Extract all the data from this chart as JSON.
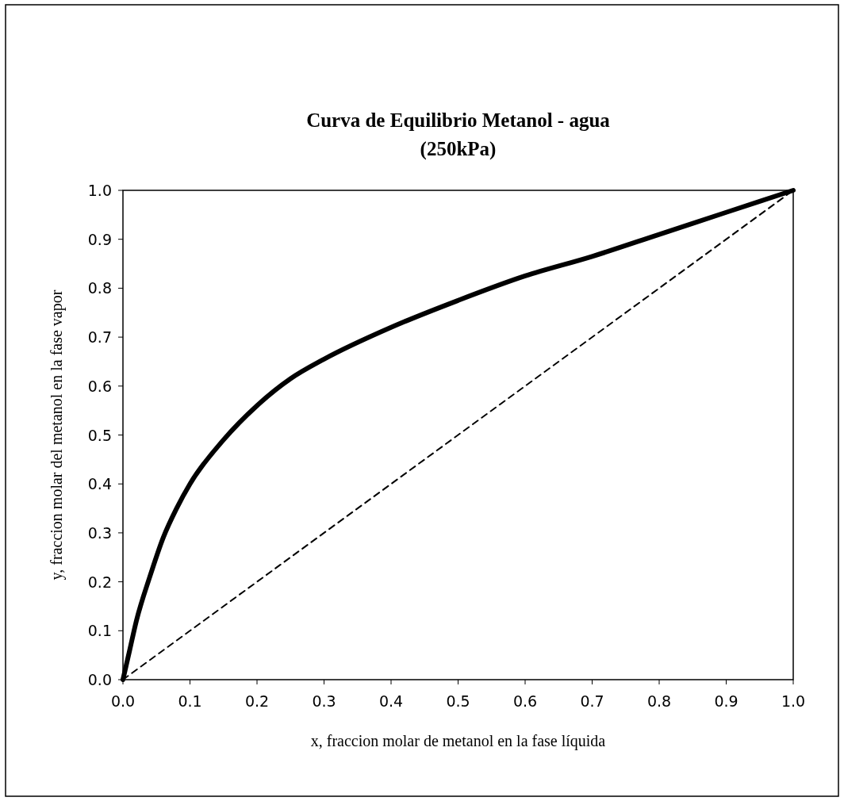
{
  "chart_data": {
    "type": "line",
    "title": "Curva de Equilibrio Metanol - agua",
    "subtitle": "(250kPa)",
    "xlabel": "x, fraccion molar de metanol en la fase líquida",
    "ylabel": "y, fraccion molar  del metanol en la fase  vapor",
    "series": [
      {
        "color": "#000000",
        "line_style": "solid",
        "x": [
          0,
          0.01,
          0.02,
          0.04,
          0.06,
          0.08,
          0.1,
          0.15,
          0.2,
          0.25,
          0.3,
          0.4,
          0.5,
          0.6,
          0.7,
          0.8,
          0.9,
          1.0
        ],
        "values": [
          0,
          0.06,
          0.12,
          0.21,
          0.29,
          0.35,
          0.4,
          0.49,
          0.56,
          0.615,
          0.655,
          0.72,
          0.775,
          0.825,
          0.865,
          0.91,
          0.955,
          1.0
        ]
      },
      {
        "color": "#000000",
        "line_style": "dashed",
        "x": [
          0,
          1
        ],
        "values": [
          0,
          1
        ]
      }
    ],
    "xlim": [
      0,
      1
    ],
    "ylim": [
      0,
      1
    ],
    "xticks": [
      {
        "value": 0,
        "label": "0.0"
      },
      0.1,
      0.2,
      0.3,
      0.4,
      0.5,
      0.6,
      0.7,
      0.8,
      0.9,
      {
        "value": 1,
        "label": "1.0"
      }
    ],
    "yticks": [
      {
        "value": 0,
        "label": "0.0"
      },
      0.1,
      0.2,
      0.3,
      0.4,
      0.5,
      0.6,
      0.7,
      0.8,
      0.9,
      {
        "value": 1,
        "label": "1.0"
      }
    ],
    "marker": "none"
  }
}
